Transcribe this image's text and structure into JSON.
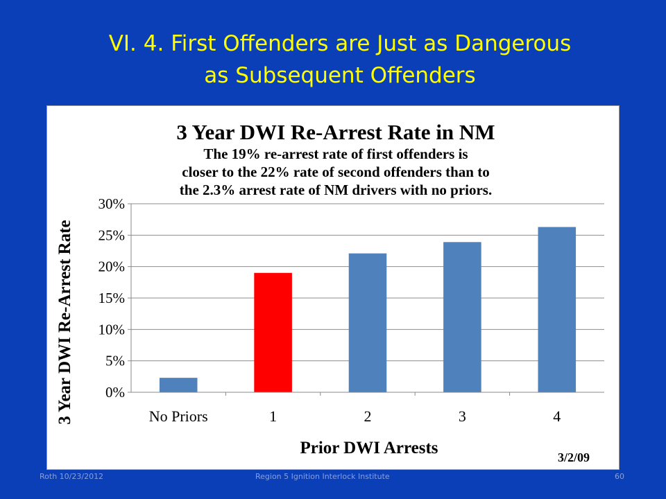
{
  "slide": {
    "title_line1": "VI. 4. First Offenders are Just as Dangerous",
    "title_line2": "as Subsequent Offenders",
    "bg_color": "#0a3fb8",
    "title_color": "#ffff00"
  },
  "chart_data": {
    "type": "bar",
    "title": "3 Year DWI Re-Arrest Rate in NM",
    "subtitle_lines": [
      "The 19% re-arrest rate of first offenders is",
      "closer to the 22% rate of second offenders than to",
      "the 2.3% arrest rate of NM drivers with no priors."
    ],
    "xlabel": "Prior DWI Arrests",
    "ylabel": "3 Year DWI Re-Arrest Rate",
    "categories": [
      "No Priors",
      "1",
      "2",
      "3",
      "4"
    ],
    "values": [
      0.023,
      0.19,
      0.221,
      0.239,
      0.263
    ],
    "colors": [
      "#4f81bd",
      "#ff0000",
      "#4f81bd",
      "#4f81bd",
      "#4f81bd"
    ],
    "yticks": [
      "0%",
      "5%",
      "10%",
      "15%",
      "20%",
      "25%",
      "30%"
    ],
    "ylim": [
      0,
      0.3
    ],
    "grid": true,
    "date_note": "3/2/09"
  },
  "footer": {
    "left": "Roth 10/23/2012",
    "center": "Region 5 Ignition Interlock Institute",
    "right": "60"
  }
}
